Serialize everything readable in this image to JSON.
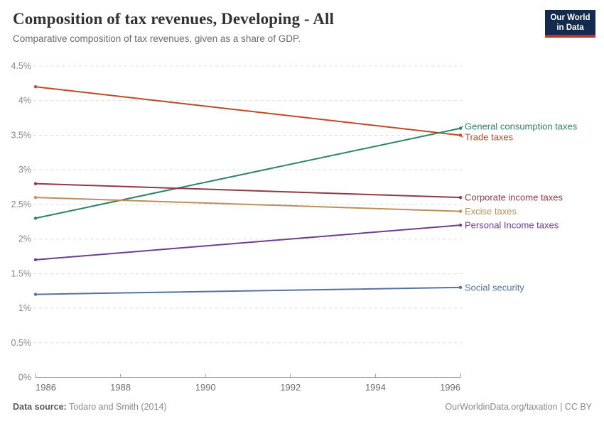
{
  "header": {
    "title": "Composition of tax revenues, Developing - All",
    "subtitle": "Comparative composition of tax revenues, given as a share of GDP."
  },
  "logo": {
    "line1": "Our World",
    "line2": "in Data"
  },
  "colors": {
    "logo_bg": "#122B4E",
    "logo_accent": "#C5302B",
    "grid": "#DCDCDC",
    "axis": "#999999",
    "x_tick_label": "#6e6e6e",
    "y_tick_label": "#888888"
  },
  "chart_data": {
    "type": "line",
    "title": "Composition of tax revenues, Developing - All",
    "subtitle": "Comparative composition of tax revenues, given as a share of GDP.",
    "xlabel": "",
    "ylabel": "",
    "unit": "%",
    "x": [
      1986,
      1996
    ],
    "xticks": [
      1986,
      1988,
      1990,
      1992,
      1994,
      1996
    ],
    "ylim": [
      0,
      4.5
    ],
    "yticks": [
      0,
      0.5,
      1,
      1.5,
      2,
      2.5,
      3,
      3.5,
      4,
      4.5
    ],
    "grid": true,
    "legend_position": "right-of-lines",
    "series": [
      {
        "name": "Trade taxes",
        "values": [
          4.2,
          3.5
        ],
        "color": "#BE4A24"
      },
      {
        "name": "General consumption taxes",
        "values": [
          2.3,
          3.6
        ],
        "color": "#2C8465"
      },
      {
        "name": "Corporate income taxes",
        "values": [
          2.8,
          2.6
        ],
        "color": "#8E3A43"
      },
      {
        "name": "Excise taxes",
        "values": [
          2.6,
          2.4
        ],
        "color": "#BC8E5A"
      },
      {
        "name": "Personal Income taxes",
        "values": [
          1.7,
          2.2
        ],
        "color": "#6D3E91"
      },
      {
        "name": "Social security",
        "values": [
          1.2,
          1.3
        ],
        "color": "#53729F"
      }
    ]
  },
  "footer": {
    "source_label": "Data source:",
    "source_value": "Todaro and Smith (2014)",
    "credit": "OurWorldinData.org/taxation | CC BY"
  }
}
